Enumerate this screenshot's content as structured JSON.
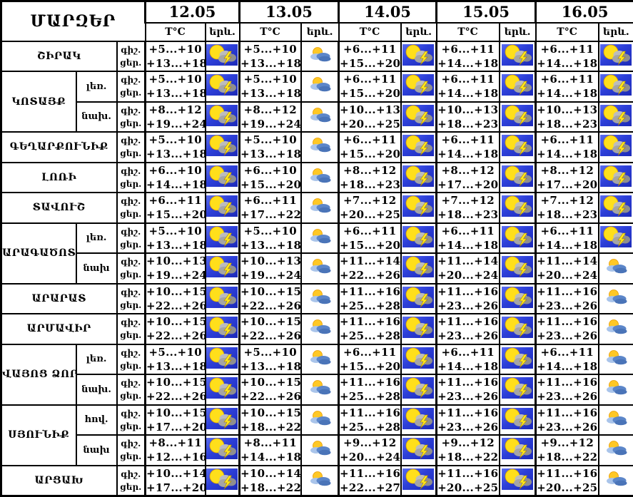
{
  "title": "ՄԱՐԶԵՐ",
  "header": {
    "dates": [
      "12.05",
      "13.05",
      "14.05",
      "15.05",
      "16.05"
    ],
    "temp_label": "T°C",
    "phenomenon_label": "երև."
  },
  "time_labels": {
    "night": "գիշ.",
    "day": "ցեր."
  },
  "icon_legend": {
    "storm": "thunderstorm-icon",
    "partly": "sun-cloud-icon"
  },
  "colors": {
    "border": "#000000",
    "storm_background": "#2d3fd8",
    "sun": "#ffdf1b",
    "cloud_gray": "#a5a5a5",
    "lightning": "#ffe81d",
    "partly_cloud_blue": "#5c86c9"
  },
  "groups": [
    {
      "region": "ՇԻՐԱԿ",
      "rows": [
        {
          "sub": null,
          "cells": [
            {
              "night": "+5...+10",
              "day": "+13...+18",
              "icon": "storm"
            },
            {
              "night": "+5...+10",
              "day": "+13...+18",
              "icon": "partly"
            },
            {
              "night": "+6...+11",
              "day": "+15...+20",
              "icon": "storm"
            },
            {
              "night": "+6...+11",
              "day": "+14...+18",
              "icon": "storm"
            },
            {
              "night": "+6...+11",
              "day": "+14...+18",
              "icon": "storm"
            }
          ]
        }
      ]
    },
    {
      "region": "ԿՈՏԱՅՔ",
      "rows": [
        {
          "sub": "լեռ.",
          "cells": [
            {
              "night": "+5...+10",
              "day": "+13...+18",
              "icon": "storm"
            },
            {
              "night": "+5...+10",
              "day": "+13...+18",
              "icon": "partly"
            },
            {
              "night": "+6...+11",
              "day": "+15...+20",
              "icon": "storm"
            },
            {
              "night": "+6...+11",
              "day": "+14...+18",
              "icon": "storm"
            },
            {
              "night": "+6...+11",
              "day": "+14...+18",
              "icon": "storm"
            }
          ]
        },
        {
          "sub": "նախ.",
          "cells": [
            {
              "night": "+8...+12",
              "day": "+19...+24",
              "icon": "storm"
            },
            {
              "night": "+8...+12",
              "day": "+19...+24",
              "icon": "partly"
            },
            {
              "night": "+10...+13",
              "day": "+20...+25",
              "icon": "storm"
            },
            {
              "night": "+10...+13",
              "day": "+18...+23",
              "icon": "storm"
            },
            {
              "night": "+10...+13",
              "day": "+18...+23",
              "icon": "storm"
            }
          ]
        }
      ]
    },
    {
      "region": "ԳԵՂԱՐՔՈՒՆԻՔ",
      "rows": [
        {
          "sub": null,
          "cells": [
            {
              "night": "+5...+10",
              "day": "+13...+18",
              "icon": "storm"
            },
            {
              "night": "+5...+10",
              "day": "+13...+18",
              "icon": "partly"
            },
            {
              "night": "+6...+11",
              "day": "+15...+20",
              "icon": "storm"
            },
            {
              "night": "+6...+11",
              "day": "+14...+18",
              "icon": "storm"
            },
            {
              "night": "+6...+11",
              "day": "+14...+18",
              "icon": "storm"
            }
          ]
        }
      ]
    },
    {
      "region": "ԼՈՌԻ",
      "rows": [
        {
          "sub": null,
          "cells": [
            {
              "night": "+6...+10",
              "day": "+14...+18",
              "icon": "storm"
            },
            {
              "night": "+6...+10",
              "day": "+15...+20",
              "icon": "partly"
            },
            {
              "night": "+8...+12",
              "day": "+18...+23",
              "icon": "storm"
            },
            {
              "night": "+8...+12",
              "day": "+17...+20",
              "icon": "storm"
            },
            {
              "night": "+8...+12",
              "day": "+17...+20",
              "icon": "storm"
            }
          ]
        }
      ]
    },
    {
      "region": "ՏԱՎՈՒՇ",
      "rows": [
        {
          "sub": null,
          "cells": [
            {
              "night": "+6...+11",
              "day": "+15...+20",
              "icon": "storm"
            },
            {
              "night": "+6...+11",
              "day": "+17...+22",
              "icon": "partly"
            },
            {
              "night": "+7...+12",
              "day": "+20...+25",
              "icon": "storm"
            },
            {
              "night": "+7...+12",
              "day": "+18...+23",
              "icon": "storm"
            },
            {
              "night": "+7...+12",
              "day": "+18...+23",
              "icon": "storm"
            }
          ]
        }
      ]
    },
    {
      "region": "ԱՐԱԳԱԾՈՏՆ",
      "rows": [
        {
          "sub": "լեռ.",
          "cells": [
            {
              "night": "+5...+10",
              "day": "+13...+18",
              "icon": "storm"
            },
            {
              "night": "+5...+10",
              "day": "+13...+18",
              "icon": "partly"
            },
            {
              "night": "+6...+11",
              "day": "+15...+20",
              "icon": "storm"
            },
            {
              "night": "+6...+11",
              "day": "+14...+18",
              "icon": "storm"
            },
            {
              "night": "+6...+11",
              "day": "+14...+18",
              "icon": "storm"
            }
          ]
        },
        {
          "sub": "նախ",
          "cells": [
            {
              "night": "+10...+13",
              "day": "+19...+24",
              "icon": "storm"
            },
            {
              "night": "+10...+13",
              "day": "+19...+24",
              "icon": "partly"
            },
            {
              "night": "+11...+14",
              "day": "+22...+26",
              "icon": "storm"
            },
            {
              "night": "+11...+14",
              "day": "+20...+24",
              "icon": "storm"
            },
            {
              "night": "+11...+14",
              "day": "+20...+24",
              "icon": "partly"
            }
          ]
        }
      ]
    },
    {
      "region": "ԱՐԱՐԱՏ",
      "rows": [
        {
          "sub": null,
          "cells": [
            {
              "night": "+10...+15",
              "day": "+22...+26",
              "icon": "storm"
            },
            {
              "night": "+10...+15",
              "day": "+22...+26",
              "icon": "partly"
            },
            {
              "night": "+11...+16",
              "day": "+25...+28",
              "icon": "storm"
            },
            {
              "night": "+11...+16",
              "day": "+23...+26",
              "icon": "storm"
            },
            {
              "night": "+11...+16",
              "day": "+23...+26",
              "icon": "partly"
            }
          ]
        }
      ]
    },
    {
      "region": "ԱՐՄԱՎԻՐ",
      "rows": [
        {
          "sub": null,
          "cells": [
            {
              "night": "+10...+15",
              "day": "+22...+26",
              "icon": "storm"
            },
            {
              "night": "+10...+15",
              "day": "+22...+26",
              "icon": "partly"
            },
            {
              "night": "+11...+16",
              "day": "+25...+28",
              "icon": "storm"
            },
            {
              "night": "+11...+16",
              "day": "+23...+26",
              "icon": "storm"
            },
            {
              "night": "+11...+16",
              "day": "+23...+26",
              "icon": "partly"
            }
          ]
        }
      ]
    },
    {
      "region": "ՎԱՅՈՑ ՁՈՐ",
      "rows": [
        {
          "sub": "լեռ.",
          "cells": [
            {
              "night": "+5...+10",
              "day": "+13...+18",
              "icon": "storm"
            },
            {
              "night": "+5...+10",
              "day": "+13...+18",
              "icon": "partly"
            },
            {
              "night": "+6...+11",
              "day": "+15...+20",
              "icon": "storm"
            },
            {
              "night": "+6...+11",
              "day": "+14...+18",
              "icon": "storm"
            },
            {
              "night": "+6...+11",
              "day": "+14...+18",
              "icon": "partly"
            }
          ]
        },
        {
          "sub": "նախ.",
          "cells": [
            {
              "night": "+10...+15",
              "day": "+22...+26",
              "icon": "storm"
            },
            {
              "night": "+10...+15",
              "day": "+22...+26",
              "icon": "partly"
            },
            {
              "night": "+11...+16",
              "day": "+25...+28",
              "icon": "storm"
            },
            {
              "night": "+11...+16",
              "day": "+23...+26",
              "icon": "storm"
            },
            {
              "night": "+11...+16",
              "day": "+23...+26",
              "icon": "partly"
            }
          ]
        }
      ]
    },
    {
      "region": "ՍՅՈՒՆԻՔ",
      "rows": [
        {
          "sub": "հով.",
          "cells": [
            {
              "night": "+10...+15",
              "day": "+17...+20",
              "icon": "storm"
            },
            {
              "night": "+10...+15",
              "day": "+18...+22",
              "icon": "partly"
            },
            {
              "night": "+11...+16",
              "day": "+25...+28",
              "icon": "storm"
            },
            {
              "night": "+11...+16",
              "day": "+23...+26",
              "icon": "storm"
            },
            {
              "night": "+11...+16",
              "day": "+23...+26",
              "icon": "partly"
            }
          ]
        },
        {
          "sub": "նախ",
          "cells": [
            {
              "night": "+8...+11",
              "day": "+12...+16",
              "icon": "storm"
            },
            {
              "night": "+8...+11",
              "day": "+14...+18",
              "icon": "partly"
            },
            {
              "night": "+9...+12",
              "day": "+20...+24",
              "icon": "storm"
            },
            {
              "night": "+9...+12",
              "day": "+18...+22",
              "icon": "storm"
            },
            {
              "night": "+9...+12",
              "day": "+18...+22",
              "icon": "partly"
            }
          ]
        }
      ]
    },
    {
      "region": "ԱՐՑԱԽ",
      "rows": [
        {
          "sub": null,
          "cells": [
            {
              "night": "+10...+14",
              "day": "+17...+20",
              "icon": "storm"
            },
            {
              "night": "+10...+14",
              "day": "+18...+22",
              "icon": "partly"
            },
            {
              "night": "+11...+16",
              "day": "+22...+27",
              "icon": "storm"
            },
            {
              "night": "+11...+16",
              "day": "+20...+25",
              "icon": "storm"
            },
            {
              "night": "+11...+16",
              "day": "+20...+25",
              "icon": "partly"
            }
          ]
        }
      ]
    }
  ]
}
